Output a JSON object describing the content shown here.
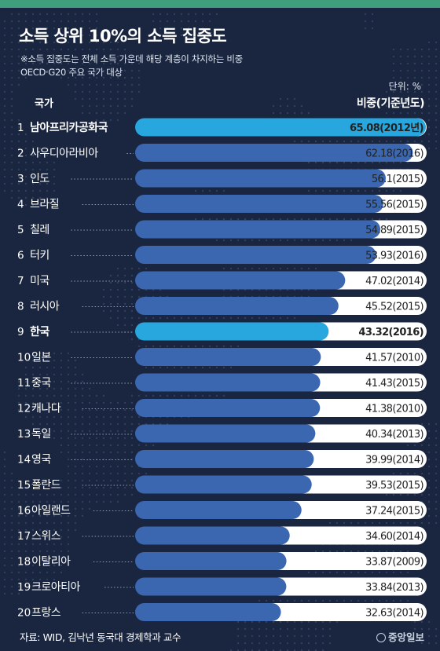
{
  "title": "소득 상위 10%의 소득 집중도",
  "subtitle": "※소득 집중도는 전체 소득 가운데 해당 계층이 차지하는 비중\nOECD·G20 주요 국가 대상",
  "unit_label": "단위: %",
  "column_country": "국가",
  "column_value": "비중(기준년도)",
  "source": "자료: WID, 김낙년 동국대 경제학과 교수",
  "logo": "중앙일보",
  "colors": {
    "bar_normal": "#3b66b0",
    "bar_highlight": "#27a7de",
    "track": "#ffffff",
    "background": "#1a2640",
    "top_bar": "#3f9e7b"
  },
  "chart_data": {
    "type": "bar",
    "orientation": "horizontal",
    "categories": [
      "남아프리카공화국",
      "사우디아라비아",
      "인도",
      "브라질",
      "칠레",
      "터키",
      "미국",
      "러시아",
      "한국",
      "일본",
      "중국",
      "캐나다",
      "독일",
      "영국",
      "폴란드",
      "아일랜드",
      "스위스",
      "이탈리아",
      "크로아티아",
      "프랑스"
    ],
    "ranks": [
      "1",
      "2",
      "3",
      "4",
      "5",
      "6",
      "7",
      "8",
      "9",
      "10",
      "11",
      "12",
      "13",
      "14",
      "15",
      "16",
      "17",
      "18",
      "19",
      "20"
    ],
    "values": [
      65.08,
      62.18,
      56.1,
      55.56,
      54.89,
      53.93,
      47.02,
      45.52,
      43.32,
      41.57,
      41.43,
      41.38,
      40.34,
      39.99,
      39.53,
      37.24,
      34.6,
      33.87,
      33.84,
      32.63
    ],
    "value_labels": [
      "65.08(2012년)",
      "62.18(2016)",
      "56.1(2015)",
      "55.56(2015)",
      "54.89(2015)",
      "53.93(2016)",
      "47.02(2014)",
      "45.52(2015)",
      "43.32(2016)",
      "41.57(2010)",
      "41.43(2015)",
      "41.38(2010)",
      "40.34(2013)",
      "39.99(2014)",
      "39.53(2015)",
      "37.24(2015)",
      "34.60(2014)",
      "33.87(2009)",
      "33.84(2013)",
      "32.63(2014)"
    ],
    "highlight": [
      "남아프리카공화국",
      "한국"
    ],
    "xlim": [
      0,
      65.08
    ],
    "grid": false
  }
}
